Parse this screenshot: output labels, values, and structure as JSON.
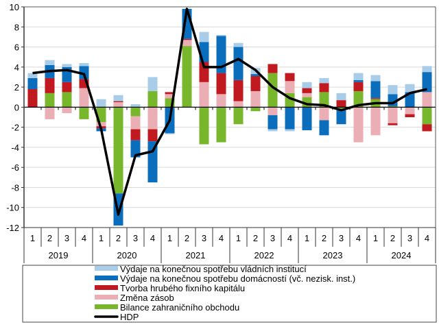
{
  "chart_data": {
    "type": "bar",
    "stacked": true,
    "ylim": [
      -12,
      10
    ],
    "yticks": [
      -12,
      -10,
      -8,
      -6,
      -4,
      -2,
      0,
      2,
      4,
      6,
      8,
      10
    ],
    "grid": true,
    "legend_position": "bottom",
    "years": [
      "2019",
      "2020",
      "2021",
      "2022",
      "2023",
      "2024"
    ],
    "quarter_labels": [
      "1",
      "2",
      "3",
      "4"
    ],
    "series": [
      {
        "name": "Výdaje na konečnou spotřebu vládních institucí",
        "color": "#a9cde9",
        "values": [
          0.5,
          0.5,
          0.3,
          0.3,
          0.8,
          0.6,
          0.3,
          1.4,
          -0.1,
          0,
          1.0,
          0.1,
          0.4,
          0.6,
          -0.2,
          -0.2,
          0.6,
          0.5,
          0.7,
          0.7,
          0.6,
          0.9,
          0.8,
          0.6
        ]
      },
      {
        "name": "Výdaje na konečnou spotřebu domácností (vč. nezisk. inst.)",
        "color": "#0a6ebd",
        "values": [
          1.1,
          1.3,
          1.5,
          1.3,
          -0.3,
          -3.2,
          -1.7,
          -4.1,
          -2.6,
          3.0,
          2.0,
          3.7,
          3.3,
          0.2,
          -1.4,
          -2.2,
          -2.3,
          -1.5,
          -1.4,
          0.2,
          1.7,
          1.2,
          1.5,
          2.0
        ]
      },
      {
        "name": "Tvorba hrubého fixního kapitálu",
        "color": "#c0191f",
        "values": [
          1.8,
          1.5,
          1.0,
          0.9,
          -0.2,
          0.1,
          -1.1,
          -1.2,
          0.2,
          0.1,
          2.0,
          2.1,
          2.1,
          1.5,
          0.9,
          0.8,
          0.5,
          0.9,
          0.7,
          0.9,
          0.1,
          -0.2,
          -0.3,
          -0.7
        ]
      },
      {
        "name": "Změna zásob",
        "color": "#eaaeb4",
        "values": [
          0,
          -1.2,
          -0.6,
          1.9,
          -0.4,
          0.5,
          -1.3,
          -2.2,
          0.4,
          0.6,
          2.5,
          1.3,
          0.6,
          1.6,
          -0.8,
          1.2,
          0.4,
          -1.3,
          -0.1,
          -3.5,
          -2.8,
          -1.6,
          -0.7,
          1.5
        ]
      },
      {
        "name": "Bilance zahraničního obchodu",
        "color": "#78b72b",
        "values": [
          0,
          1.4,
          1.5,
          -1.2,
          -1.5,
          -8.6,
          -0.9,
          1.6,
          0.9,
          6.1,
          -3.7,
          -3.5,
          -1.7,
          -0.4,
          3.4,
          1.4,
          1.0,
          1.5,
          -0.2,
          1.6,
          0.8,
          0.1,
          0,
          -1.7
        ]
      }
    ],
    "line": {
      "name": "HDP",
      "color": "#000000",
      "values": [
        3.4,
        3.6,
        3.7,
        3.3,
        -2.2,
        -10.7,
        -4.8,
        -4.4,
        -1.3,
        9.8,
        4.0,
        4.0,
        4.8,
        3.7,
        2.0,
        0.9,
        0.3,
        0.2,
        -0.3,
        0.2,
        0.4,
        0.4,
        1.4,
        1.8
      ]
    }
  }
}
